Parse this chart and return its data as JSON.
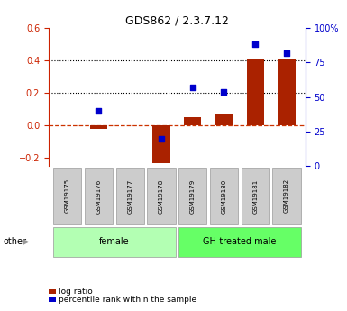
{
  "title": "GDS862 / 2.3.7.12",
  "samples": [
    "GSM19175",
    "GSM19176",
    "GSM19177",
    "GSM19178",
    "GSM19179",
    "GSM19180",
    "GSM19181",
    "GSM19182"
  ],
  "log_ratio": [
    0.0,
    -0.02,
    0.0,
    -0.23,
    0.05,
    0.07,
    0.41,
    0.41
  ],
  "percentile_rank": [
    null,
    40.0,
    null,
    20.0,
    57.0,
    54.0,
    88.0,
    82.0
  ],
  "groups": [
    {
      "label": "female",
      "indices": [
        0,
        1,
        2,
        3
      ],
      "color": "#b3ffb3"
    },
    {
      "label": "GH-treated male",
      "indices": [
        4,
        5,
        6,
        7
      ],
      "color": "#66ff66"
    }
  ],
  "ylim_left": [
    -0.25,
    0.6
  ],
  "ylim_right": [
    0,
    100
  ],
  "bar_color": "#aa2200",
  "dot_color": "#0000cc",
  "background_color": "#ffffff",
  "zero_line_color": "#cc3300",
  "sample_box_color": "#cccccc",
  "other_label": "other",
  "legend_log_ratio": "log ratio",
  "legend_percentile": "percentile rank within the sample",
  "left_axis_color": "#cc2200",
  "right_axis_color": "#0000cc",
  "dotted_lines": [
    0.2,
    0.4
  ],
  "bar_width": 0.55,
  "left_yticks": [
    -0.2,
    0.0,
    0.2,
    0.4,
    0.6
  ],
  "right_yticks": [
    0,
    25,
    50,
    75,
    100
  ]
}
